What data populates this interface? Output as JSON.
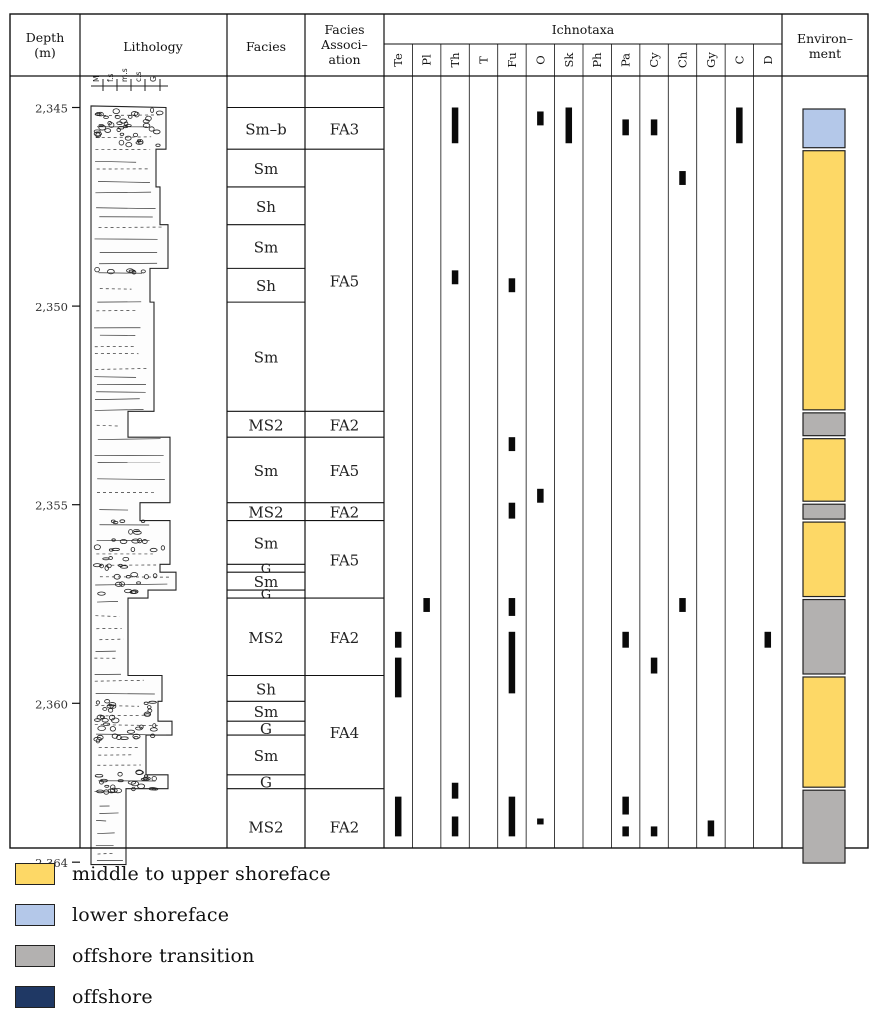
{
  "headers": {
    "depth": [
      "Depth",
      "(m)"
    ],
    "lithology": "Lithology",
    "facies": "Facies",
    "facies_association": [
      "Facies",
      "Associ–",
      "ation"
    ],
    "ichnotaxa": "Ichnotaxa",
    "environment": [
      "Environ–",
      "ment"
    ]
  },
  "ichnotaxa_columns": [
    "Te",
    "Pl",
    "Th",
    "T",
    "Fu",
    "O",
    "Sk",
    "Ph",
    "Pa",
    "Cy",
    "Ch",
    "Gy",
    "C",
    "D"
  ],
  "grain_scale": [
    "M",
    "f.s",
    "m.s",
    "c.s",
    "G"
  ],
  "depth_axis": {
    "top_m": 2344.96,
    "bottom_m": 2364.06,
    "ticks": [
      {
        "value": 2345,
        "label": "2,345"
      },
      {
        "value": 2350,
        "label": "2,350"
      },
      {
        "value": 2355,
        "label": "2,355"
      },
      {
        "value": 2360,
        "label": "2,360"
      },
      {
        "value": 2364,
        "label": "2,364"
      }
    ]
  },
  "facies": [
    {
      "label": "Sm–b",
      "top": 2345.0,
      "base": 2346.05
    },
    {
      "label": "Sm",
      "top": 2346.05,
      "base": 2347.0
    },
    {
      "label": "Sh",
      "top": 2347.0,
      "base": 2347.95
    },
    {
      "label": "Sm",
      "top": 2347.95,
      "base": 2349.05
    },
    {
      "label": "Sh",
      "top": 2349.05,
      "base": 2349.9
    },
    {
      "label": "Sm",
      "top": 2349.9,
      "base": 2352.65
    },
    {
      "label": "MS2",
      "top": 2352.65,
      "base": 2353.3
    },
    {
      "label": "Sm",
      "top": 2353.3,
      "base": 2354.95
    },
    {
      "label": "MS2",
      "top": 2354.95,
      "base": 2355.4
    },
    {
      "label": "Sm",
      "top": 2355.4,
      "base": 2356.5
    },
    {
      "label": "G",
      "top": 2356.5,
      "base": 2356.7
    },
    {
      "label": "Sm",
      "top": 2356.7,
      "base": 2357.15
    },
    {
      "label": "G",
      "top": 2357.15,
      "base": 2357.35
    },
    {
      "label": "MS2",
      "top": 2357.35,
      "base": 2359.3
    },
    {
      "label": "Sh",
      "top": 2359.3,
      "base": 2359.95
    },
    {
      "label": "Sm",
      "top": 2359.95,
      "base": 2360.45
    },
    {
      "label": "G",
      "top": 2360.45,
      "base": 2360.8
    },
    {
      "label": "Sm",
      "top": 2360.8,
      "base": 2361.8
    },
    {
      "label": "G",
      "top": 2361.8,
      "base": 2362.15
    },
    {
      "label": "MS2",
      "top": 2362.15,
      "base": 2364.06
    }
  ],
  "facies_associations": [
    {
      "label": "FA3",
      "top": 2345.0,
      "base": 2346.05
    },
    {
      "label": "FA5",
      "top": 2346.05,
      "base": 2352.65
    },
    {
      "label": "FA2",
      "top": 2352.65,
      "base": 2353.3
    },
    {
      "label": "FA5",
      "top": 2353.3,
      "base": 2354.95
    },
    {
      "label": "FA2",
      "top": 2354.95,
      "base": 2355.4
    },
    {
      "label": "FA5",
      "top": 2355.4,
      "base": 2357.35
    },
    {
      "label": "FA2",
      "top": 2357.35,
      "base": 2359.3
    },
    {
      "label": "FA4",
      "top": 2359.3,
      "base": 2362.15
    },
    {
      "label": "FA2",
      "top": 2362.15,
      "base": 2364.06
    }
  ],
  "ichnotaxa_occurrences": [
    {
      "taxon": "Th",
      "top": 2345.0,
      "base": 2345.9
    },
    {
      "taxon": "O",
      "top": 2345.1,
      "base": 2345.45
    },
    {
      "taxon": "Sk",
      "top": 2345.0,
      "base": 2345.9
    },
    {
      "taxon": "Pa",
      "top": 2345.3,
      "base": 2345.7
    },
    {
      "taxon": "Cy",
      "top": 2345.3,
      "base": 2345.7
    },
    {
      "taxon": "C",
      "top": 2345.0,
      "base": 2345.9
    },
    {
      "taxon": "Ch",
      "top": 2346.6,
      "base": 2346.95
    },
    {
      "taxon": "Th",
      "top": 2349.1,
      "base": 2349.45
    },
    {
      "taxon": "Fu",
      "top": 2349.3,
      "base": 2349.65
    },
    {
      "taxon": "Fu",
      "top": 2353.3,
      "base": 2353.65
    },
    {
      "taxon": "O",
      "top": 2354.6,
      "base": 2354.95
    },
    {
      "taxon": "Fu",
      "top": 2354.95,
      "base": 2355.35
    },
    {
      "taxon": "Pl",
      "top": 2357.35,
      "base": 2357.7
    },
    {
      "taxon": "Fu",
      "top": 2357.35,
      "base": 2357.8
    },
    {
      "taxon": "Ch",
      "top": 2357.35,
      "base": 2357.7
    },
    {
      "taxon": "Te",
      "top": 2358.2,
      "base": 2358.6
    },
    {
      "taxon": "Fu",
      "top": 2358.2,
      "base": 2359.75
    },
    {
      "taxon": "Pa",
      "top": 2358.2,
      "base": 2358.6
    },
    {
      "taxon": "D",
      "top": 2358.2,
      "base": 2358.6
    },
    {
      "taxon": "Te",
      "top": 2358.85,
      "base": 2359.85
    },
    {
      "taxon": "Cy",
      "top": 2358.85,
      "base": 2359.25
    },
    {
      "taxon": "Th",
      "top": 2362.0,
      "base": 2362.4
    },
    {
      "taxon": "Te",
      "top": 2362.35,
      "base": 2363.35
    },
    {
      "taxon": "Fu",
      "top": 2362.35,
      "base": 2363.35
    },
    {
      "taxon": "Pa",
      "top": 2362.35,
      "base": 2362.8
    },
    {
      "taxon": "Th",
      "top": 2362.85,
      "base": 2363.35
    },
    {
      "taxon": "O",
      "top": 2362.9,
      "base": 2363.05
    },
    {
      "taxon": "Gy",
      "top": 2362.95,
      "base": 2363.35
    },
    {
      "taxon": "Pa",
      "top": 2363.1,
      "base": 2363.35
    },
    {
      "taxon": "Cy",
      "top": 2363.1,
      "base": 2363.35
    }
  ],
  "environment_intervals": [
    {
      "env": "lower shoreface",
      "top": 2345.0,
      "base": 2346.05
    },
    {
      "env": "middle to upper shoreface",
      "top": 2346.05,
      "base": 2352.65
    },
    {
      "env": "offshore transition",
      "top": 2352.65,
      "base": 2353.3
    },
    {
      "env": "middle to upper shoreface",
      "top": 2353.3,
      "base": 2354.95
    },
    {
      "env": "offshore transition",
      "top": 2354.95,
      "base": 2355.4
    },
    {
      "env": "middle to upper shoreface",
      "top": 2355.4,
      "base": 2357.35
    },
    {
      "env": "offshore transition",
      "top": 2357.35,
      "base": 2359.3
    },
    {
      "env": "middle to upper shoreface",
      "top": 2359.3,
      "base": 2362.15
    },
    {
      "env": "offshore transition",
      "top": 2362.15,
      "base": 2364.06
    }
  ],
  "legend": [
    {
      "label": "middle to upper shoreface",
      "color": "#fdd866"
    },
    {
      "label": "lower shoreface",
      "color": "#b4c8e9"
    },
    {
      "label": "offshore transition",
      "color": "#b3b1b0"
    },
    {
      "label": "offshore",
      "color": "#1f3864"
    }
  ],
  "colors": {
    "middle to upper shoreface": "#fdd866",
    "lower shoreface": "#b4c8e9",
    "offshore transition": "#b3b1b0",
    "offshore": "#1f3864"
  }
}
